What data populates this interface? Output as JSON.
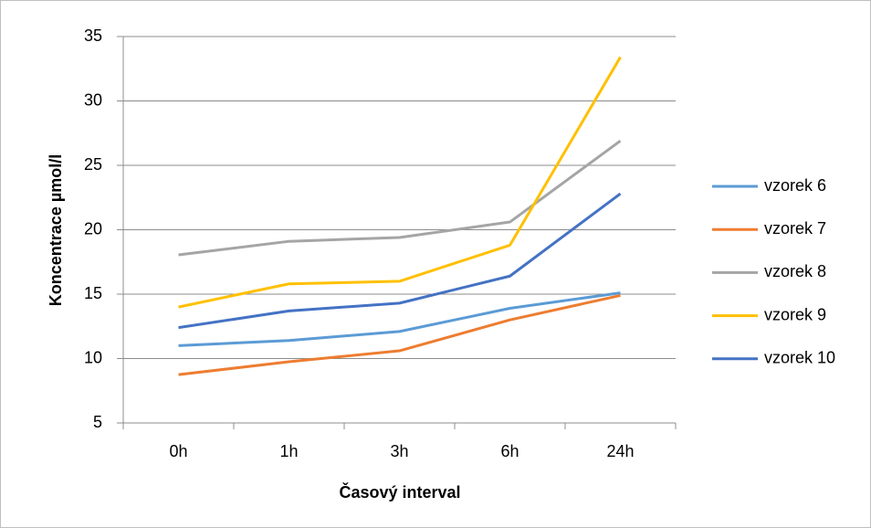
{
  "chart_data": {
    "type": "line",
    "x_label": "Časový interval",
    "y_label": "Koncentrace µmol/l",
    "categories": [
      "0h",
      "1h",
      "3h",
      "6h",
      "24h"
    ],
    "series": [
      {
        "name": "vzorek 6",
        "color": "#5b9bd5",
        "values": [
          11.0,
          11.4,
          12.1,
          13.9,
          15.1
        ]
      },
      {
        "name": "vzorek 7",
        "color": "#ed7d31",
        "values": [
          8.75,
          9.75,
          10.6,
          13.0,
          14.9
        ]
      },
      {
        "name": "vzorek 8",
        "color": "#a5a5a5",
        "values": [
          18.05,
          19.1,
          19.4,
          20.6,
          26.9
        ]
      },
      {
        "name": "vzorek 9",
        "color": "#ffc000",
        "values": [
          14.0,
          15.8,
          16.0,
          18.8,
          33.4
        ]
      },
      {
        "name": "vzorek 10",
        "color": "#4472c4",
        "values": [
          12.4,
          13.7,
          14.3,
          16.4,
          22.8
        ]
      }
    ],
    "ylim": [
      5,
      35
    ],
    "yticks": [
      5,
      10,
      15,
      20,
      25,
      30,
      35
    ],
    "grid": true,
    "legend": "right"
  }
}
